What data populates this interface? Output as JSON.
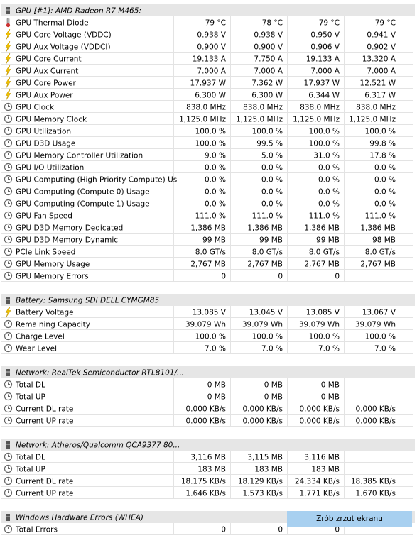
{
  "sections": [
    {
      "title": "GPU [#1]: AMD Radeon R7 M465:",
      "rows": [
        {
          "icon": "thermometer",
          "label": "GPU Thermal Diode",
          "values": [
            "79 °C",
            "78 °C",
            "79 °C",
            "79 °C"
          ]
        },
        {
          "icon": "bolt",
          "label": "GPU Core Voltage (VDDC)",
          "values": [
            "0.938 V",
            "0.938 V",
            "0.950 V",
            "0.941 V"
          ]
        },
        {
          "icon": "bolt",
          "label": "GPU Aux Voltage (VDDCI)",
          "values": [
            "0.900 V",
            "0.900 V",
            "0.906 V",
            "0.902 V"
          ]
        },
        {
          "icon": "bolt",
          "label": "GPU Core Current",
          "values": [
            "19.133 A",
            "7.750 A",
            "19.133 A",
            "13.320 A"
          ]
        },
        {
          "icon": "bolt",
          "label": "GPU Aux Current",
          "values": [
            "7.000 A",
            "7.000 A",
            "7.000 A",
            "7.000 A"
          ]
        },
        {
          "icon": "bolt",
          "label": "GPU Core Power",
          "values": [
            "17.937 W",
            "7.362 W",
            "17.937 W",
            "12.521 W"
          ]
        },
        {
          "icon": "bolt",
          "label": "GPU Aux Power",
          "values": [
            "6.300 W",
            "6.300 W",
            "6.344 W",
            "6.317 W"
          ]
        },
        {
          "icon": "clock",
          "label": "GPU Clock",
          "values": [
            "838.0 MHz",
            "838.0 MHz",
            "838.0 MHz",
            "838.0 MHz"
          ]
        },
        {
          "icon": "clock",
          "label": "GPU Memory Clock",
          "values": [
            "1,125.0 MHz",
            "1,125.0 MHz",
            "1,125.0 MHz",
            "1,125.0 MHz"
          ]
        },
        {
          "icon": "clock",
          "label": "GPU Utilization",
          "values": [
            "100.0 %",
            "100.0 %",
            "100.0 %",
            "100.0 %"
          ]
        },
        {
          "icon": "clock",
          "label": "GPU D3D Usage",
          "values": [
            "100.0 %",
            "99.5 %",
            "100.0 %",
            "99.8 %"
          ]
        },
        {
          "icon": "clock",
          "label": "GPU Memory Controller Utilization",
          "values": [
            "9.0 %",
            "5.0 %",
            "31.0 %",
            "17.8 %"
          ]
        },
        {
          "icon": "clock",
          "label": "GPU I/O Utilization",
          "values": [
            "0.0 %",
            "0.0 %",
            "0.0 %",
            "0.0 %"
          ]
        },
        {
          "icon": "clock",
          "label": "GPU Computing (High Priority Compute) Us",
          "values": [
            "0.0 %",
            "0.0 %",
            "0.0 %",
            "0.0 %"
          ]
        },
        {
          "icon": "clock",
          "label": "GPU Computing (Compute 0) Usage",
          "values": [
            "0.0 %",
            "0.0 %",
            "0.0 %",
            "0.0 %"
          ]
        },
        {
          "icon": "clock",
          "label": "GPU Computing (Compute 1) Usage",
          "values": [
            "0.0 %",
            "0.0 %",
            "0.0 %",
            "0.0 %"
          ]
        },
        {
          "icon": "clock",
          "label": "GPU Fan Speed",
          "values": [
            "111.0 %",
            "111.0 %",
            "111.0 %",
            "111.0 %"
          ]
        },
        {
          "icon": "clock",
          "label": "GPU D3D Memory Dedicated",
          "values": [
            "1,386 MB",
            "1,386 MB",
            "1,386 MB",
            "1,386 MB"
          ]
        },
        {
          "icon": "clock",
          "label": "GPU D3D Memory Dynamic",
          "values": [
            "99 MB",
            "99 MB",
            "99 MB",
            "98 MB"
          ]
        },
        {
          "icon": "clock",
          "label": "PCIe Link Speed",
          "values": [
            "8.0 GT/s",
            "8.0 GT/s",
            "8.0 GT/s",
            "8.0 GT/s"
          ]
        },
        {
          "icon": "clock",
          "label": "GPU Memory Usage",
          "values": [
            "2,767 MB",
            "2,767 MB",
            "2,767 MB",
            "2,767 MB"
          ]
        },
        {
          "icon": "clock",
          "label": "GPU Memory Errors",
          "values": [
            "0",
            "0",
            "0",
            null
          ]
        }
      ]
    },
    {
      "title": "Battery: Samsung SDI DELL CYMGM85",
      "rows": [
        {
          "icon": "bolt",
          "label": "Battery Voltage",
          "values": [
            "13.085 V",
            "13.045 V",
            "13.085 V",
            "13.067 V"
          ]
        },
        {
          "icon": "clock",
          "label": "Remaining Capacity",
          "values": [
            "39.079 Wh",
            "39.079 Wh",
            "39.079 Wh",
            "39.079 Wh"
          ]
        },
        {
          "icon": "clock",
          "label": "Charge Level",
          "values": [
            "100.0 %",
            "100.0 %",
            "100.0 %",
            "100.0 %"
          ]
        },
        {
          "icon": "clock",
          "label": "Wear Level",
          "values": [
            "7.0 %",
            "7.0 %",
            "7.0 %",
            "7.0 %"
          ]
        }
      ]
    },
    {
      "title": "Network: RealTek Semiconductor RTL8101/...",
      "rows": [
        {
          "icon": "clock",
          "label": "Total DL",
          "values": [
            "0 MB",
            "0 MB",
            "0 MB",
            null
          ]
        },
        {
          "icon": "clock",
          "label": "Total UP",
          "values": [
            "0 MB",
            "0 MB",
            "0 MB",
            null
          ]
        },
        {
          "icon": "clock",
          "label": "Current DL rate",
          "values": [
            "0.000 KB/s",
            "0.000 KB/s",
            "0.000 KB/s",
            "0.000 KB/s"
          ]
        },
        {
          "icon": "clock",
          "label": "Current UP rate",
          "values": [
            "0.000 KB/s",
            "0.000 KB/s",
            "0.000 KB/s",
            "0.000 KB/s"
          ]
        }
      ]
    },
    {
      "title": "Network: Atheros/Qualcomm QCA9377 80...",
      "rows": [
        {
          "icon": "clock",
          "label": "Total DL",
          "values": [
            "3,116 MB",
            "3,115 MB",
            "3,116 MB",
            null
          ]
        },
        {
          "icon": "clock",
          "label": "Total UP",
          "values": [
            "183 MB",
            "183 MB",
            "183 MB",
            null
          ]
        },
        {
          "icon": "clock",
          "label": "Current DL rate",
          "values": [
            "18.175 KB/s",
            "18.129 KB/s",
            "24.334 KB/s",
            "18.385 KB/s"
          ]
        },
        {
          "icon": "clock",
          "label": "Current UP rate",
          "values": [
            "1.646 KB/s",
            "1.573 KB/s",
            "1.771 KB/s",
            "1.670 KB/s"
          ]
        }
      ]
    },
    {
      "title": "Windows Hardware Errors (WHEA)",
      "rows": [
        {
          "icon": "clock",
          "label": "Total Errors",
          "values": [
            "0",
            "0",
            "0",
            null
          ]
        }
      ]
    }
  ],
  "overlay_button": "Zrób zrzut ekranu"
}
